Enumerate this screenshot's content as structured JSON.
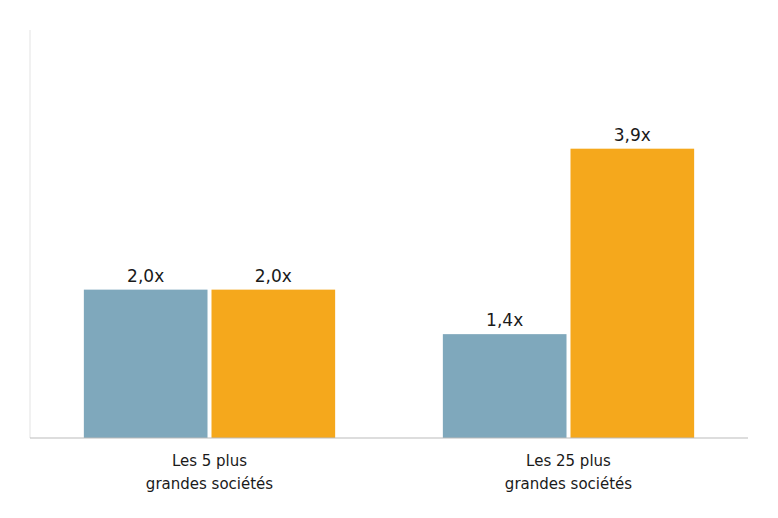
{
  "chart_data": {
    "type": "bar",
    "categories": [
      "Les 5 plus\ngrandes sociétés",
      "Les 25 plus\ngrandes sociétés"
    ],
    "series": [
      {
        "color": "#7fa8bc",
        "values": [
          2.0,
          1.4
        ],
        "value_labels": [
          "2,0x",
          "1,4x"
        ]
      },
      {
        "color": "#f5a81c",
        "values": [
          2.0,
          3.9
        ],
        "value_labels": [
          "2,0x",
          "3,9x"
        ]
      }
    ],
    "ylim": [
      0,
      5.5
    ],
    "grid": false,
    "data_labels": true,
    "tick_labels": "x"
  }
}
